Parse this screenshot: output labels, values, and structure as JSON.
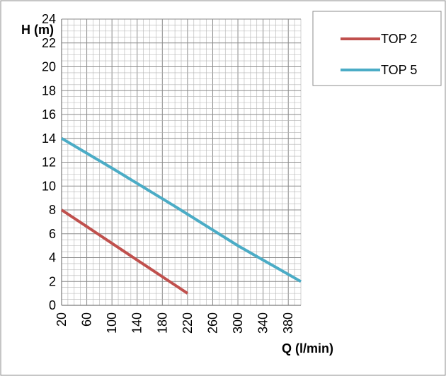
{
  "chart_data": {
    "type": "line",
    "title": "",
    "xlabel": "Q (l/min)",
    "ylabel": "H (m)",
    "xlim": [
      20,
      400
    ],
    "ylim": [
      0,
      24
    ],
    "x_ticks": [
      20,
      60,
      100,
      140,
      180,
      220,
      260,
      300,
      340,
      380
    ],
    "y_ticks": [
      0,
      2,
      4,
      6,
      8,
      10,
      12,
      14,
      16,
      18,
      20,
      22,
      24
    ],
    "grid": true,
    "legend_position": "right",
    "series": [
      {
        "name": "TOP 2",
        "color": "#c0504d",
        "x": [
          20,
          60,
          100,
          140,
          180,
          220
        ],
        "y": [
          8,
          6.6,
          5.2,
          3.8,
          2.4,
          1
        ]
      },
      {
        "name": "TOP 5",
        "color": "#4bacc6",
        "x": [
          20,
          100,
          200,
          300,
          400
        ],
        "y": [
          14,
          11.5,
          8.3,
          5,
          2
        ]
      }
    ]
  }
}
